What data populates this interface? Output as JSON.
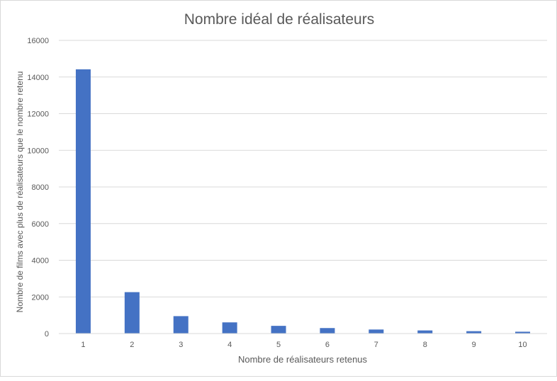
{
  "chart_data": {
    "type": "bar",
    "title": "Nombre idéal de réalisateurs",
    "xlabel": "Nombre de réalisateurs retenus",
    "ylabel": "Nombre de films avec plus de réalisateurs que le nombre retenu",
    "categories": [
      "1",
      "2",
      "3",
      "4",
      "5",
      "6",
      "7",
      "8",
      "9",
      "10"
    ],
    "series": [
      {
        "values": [
          14420,
          2260,
          950,
          610,
          420,
          300,
          220,
          170,
          130,
          100
        ]
      }
    ],
    "ylim": [
      0,
      16000
    ],
    "yticks": [
      "0",
      "2000",
      "4000",
      "6000",
      "8000",
      "10000",
      "12000",
      "14000",
      "16000"
    ],
    "grid": true,
    "legend": "none",
    "bar_color": "#4472c4",
    "grid_color": "#d9d9d9"
  }
}
